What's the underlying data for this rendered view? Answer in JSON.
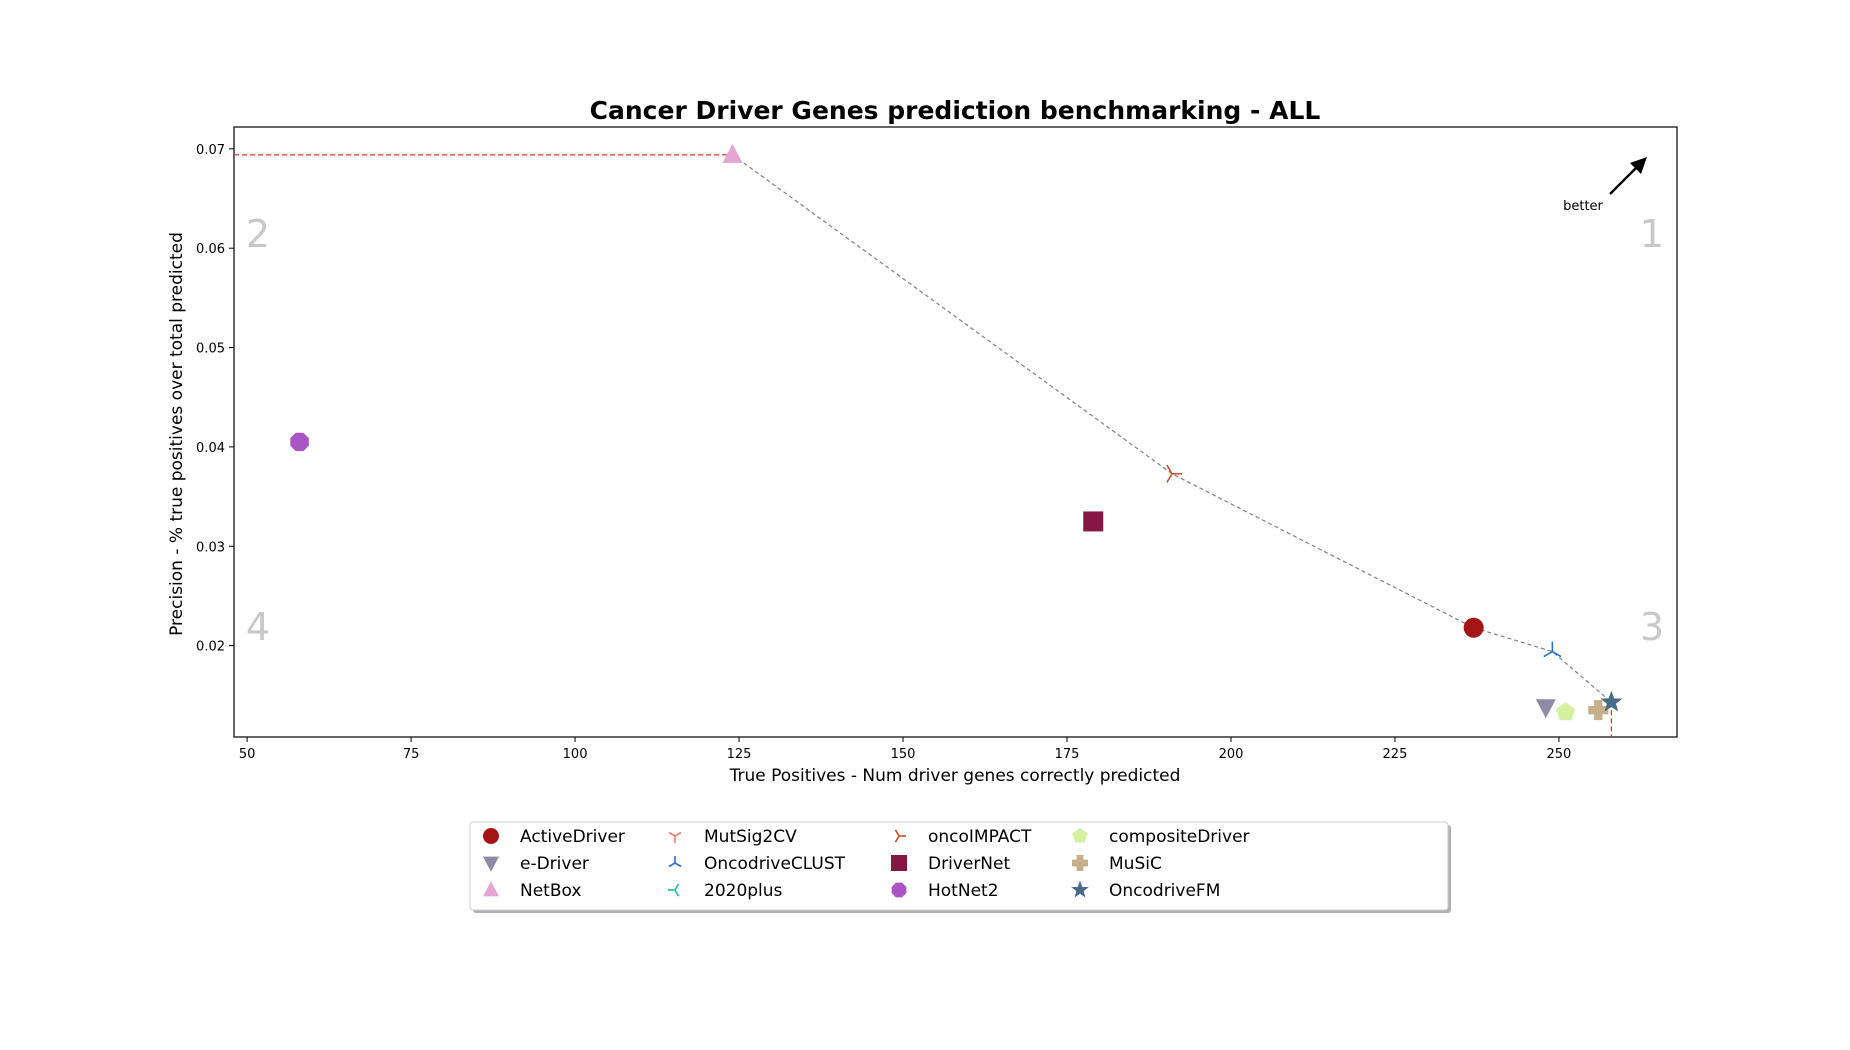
{
  "chart_data": {
    "type": "scatter",
    "title": "Cancer Driver Genes prediction benchmarking - ALL",
    "xlabel": "True Positives - Num driver genes correctly predicted",
    "ylabel": "Precision - % true positives over total predicted",
    "xlim": [
      48,
      268
    ],
    "ylim": [
      0.0108,
      0.0722
    ],
    "xticks": [
      50,
      75,
      100,
      125,
      150,
      175,
      200,
      225,
      250
    ],
    "yticks": [
      0.02,
      0.03,
      0.04,
      0.05,
      0.06,
      0.07
    ],
    "grid": false,
    "legend_position": "bottom-center",
    "quadrant_labels": [
      "1",
      "2",
      "3",
      "4"
    ],
    "annotation": "better",
    "series": [
      {
        "name": "ActiveDriver",
        "x": 237,
        "y": 0.0218,
        "marker": "circle",
        "color": "#a51515"
      },
      {
        "name": "e-Driver",
        "x": 248,
        "y": 0.0138,
        "marker": "triangle-down",
        "color": "#8e8ba6"
      },
      {
        "name": "NetBox",
        "x": 124,
        "y": 0.0694,
        "marker": "triangle-up",
        "color": "#e4a6d2"
      },
      {
        "name": "MutSig2CV",
        "x": null,
        "y": null,
        "marker": "tri-down",
        "color": "#f08070"
      },
      {
        "name": "OncodriveCLUST",
        "x": 249,
        "y": 0.0194,
        "marker": "tri-up",
        "color": "#2c6fd1"
      },
      {
        "name": "2020plus",
        "x": null,
        "y": null,
        "marker": "tri-left",
        "color": "#2ab3b3"
      },
      {
        "name": "oncoIMPACT",
        "x": 191,
        "y": 0.0373,
        "marker": "tri-right",
        "color": "#c9512b"
      },
      {
        "name": "DriverNet",
        "x": 179,
        "y": 0.0325,
        "marker": "square",
        "color": "#861744"
      },
      {
        "name": "HotNet2",
        "x": 58,
        "y": 0.0405,
        "marker": "octagon",
        "color": "#aa55c6"
      },
      {
        "name": "compositeDriver",
        "x": 251,
        "y": 0.0133,
        "marker": "pentagon",
        "color": "#d5f0a0"
      },
      {
        "name": "MuSiC",
        "x": 256,
        "y": 0.0135,
        "marker": "plus",
        "color": "#c6b08a"
      },
      {
        "name": "OncodriveFM",
        "x": 258,
        "y": 0.0143,
        "marker": "star",
        "color": "#4a6a8a"
      }
    ],
    "pareto_front": [
      [
        124,
        0.0694
      ],
      [
        191,
        0.0373
      ],
      [
        237,
        0.0218
      ],
      [
        249,
        0.0194
      ],
      [
        258,
        0.0143
      ]
    ],
    "pareto_color": "#808080",
    "reference_color": "#e82020"
  }
}
